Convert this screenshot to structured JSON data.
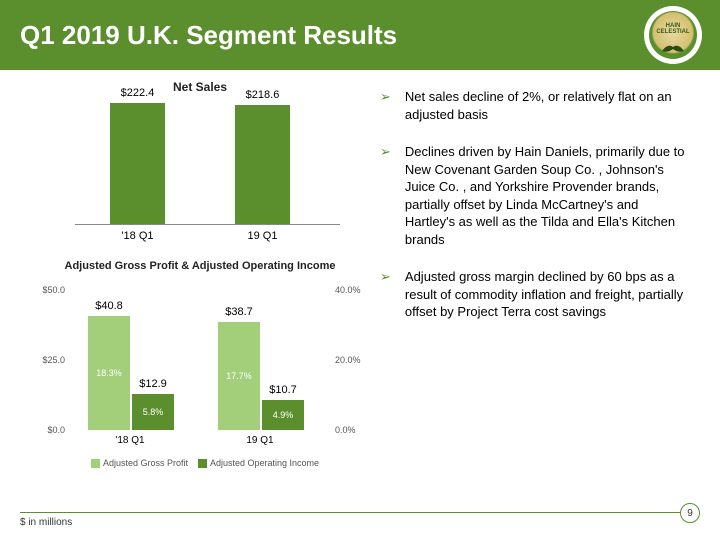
{
  "header": {
    "title": "Q1 2019 U.K. Segment Results",
    "logo_top": "HAIN",
    "logo_bottom": "CELESTIAL"
  },
  "chart1": {
    "title": "Net Sales",
    "bar_color": "#5b8f2e",
    "ymax": 230,
    "bars": [
      {
        "label": "$222.4",
        "value": 222.4,
        "x": "'18 Q1"
      },
      {
        "label": "$218.6",
        "value": 218.6,
        "x": "19 Q1"
      }
    ]
  },
  "chart2": {
    "title": "Adjusted Gross Profit & Adjusted Operating Income",
    "color_light": "#a3cf7a",
    "color_dark": "#5b8f2e",
    "y_left_max": 50,
    "y_left_ticks": [
      "$50.0",
      "$25.0",
      "$0.0"
    ],
    "y_right_ticks": [
      "40.0%",
      "20.0%",
      "0.0%"
    ],
    "groups": [
      {
        "x": "'18 Q1",
        "light_val": 40.8,
        "light_label": "$40.8",
        "light_pct": "18.3%",
        "dark_val": 12.9,
        "dark_label": "$12.9",
        "dark_pct": "5.8%"
      },
      {
        "x": "19 Q1",
        "light_val": 38.7,
        "light_label": "$38.7",
        "light_pct": "17.7%",
        "dark_val": 10.7,
        "dark_label": "$10.7",
        "dark_pct": "4.9%"
      }
    ],
    "legend": {
      "a": "Adjusted Gross Profit",
      "b": "Adjusted Operating Income"
    }
  },
  "bullets": [
    "Net sales decline of 2%, or relatively flat on an adjusted basis",
    "Declines driven by Hain Daniels, primarily due to New Covenant Garden Soup Co.  , Johnson's Juice Co.  , and Yorkshire Provender  brands, partially offset by Linda McCartney's   and Hartley's   as well as the Tilda  and Ella's Kitchen  brands",
    "Adjusted gross margin declined by 60 bps as a result of commodity inflation and freight, partially offset by Project Terra cost savings"
  ],
  "footer": {
    "note": "$ in millions",
    "page": "9"
  }
}
